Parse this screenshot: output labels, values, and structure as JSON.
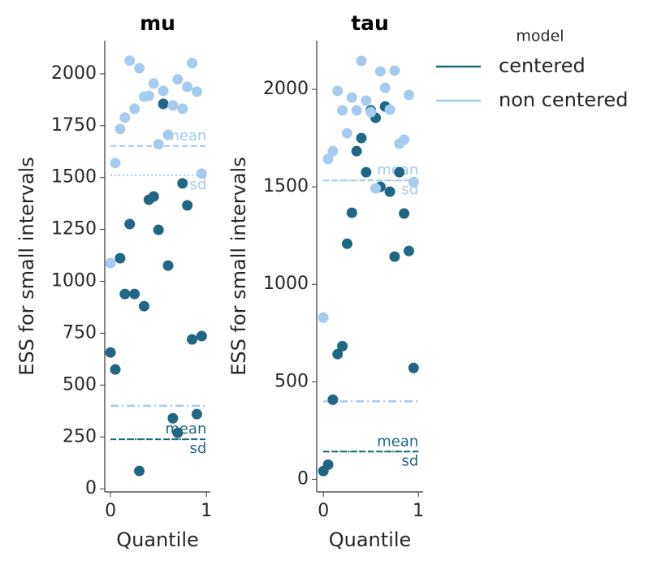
{
  "chart_data": [
    {
      "type": "scatter",
      "title": "mu",
      "xlabel": "Quantile",
      "ylabel": "ESS for small intervals",
      "x": [
        0,
        0.05,
        0.1,
        0.15,
        0.2,
        0.25,
        0.3,
        0.35,
        0.4,
        0.45,
        0.5,
        0.55,
        0.6,
        0.65,
        0.7,
        0.75,
        0.8,
        0.85,
        0.9,
        0.95
      ],
      "xlim": [
        -0.06,
        1.04
      ],
      "xticks": [
        0,
        1
      ],
      "ylim": [
        -15,
        2160
      ],
      "yticks": [
        0,
        250,
        500,
        750,
        1000,
        1250,
        1500,
        1750,
        2000
      ],
      "legend_title": "model",
      "series": [
        {
          "name": "centered",
          "color": "#1f6784",
          "values": [
            657,
            575,
            1111,
            939,
            1276,
            939,
            86,
            880,
            1393,
            1409,
            1248,
            1855,
            1076,
            340,
            270,
            1472,
            1366,
            720,
            360,
            736
          ],
          "mean_line": {
            "label": "mean",
            "value": 239
          },
          "sd_line": {
            "label": "sd",
            "value": 239
          }
        },
        {
          "name": "non centered",
          "color": "#a6cbf0",
          "values": [
            1088,
            1570,
            1734,
            1789,
            2063,
            1832,
            2027,
            1890,
            1894,
            1953,
            1660,
            1918,
            1706,
            1847,
            1973,
            1832,
            1937,
            2051,
            1914,
            1519
          ],
          "mean_line": {
            "label": "mean",
            "value": 1652
          },
          "sd_line": {
            "label": "sd",
            "value": 1511
          }
        }
      ],
      "min_ess_line": {
        "value": 400,
        "color": "#a6cbf0"
      }
    },
    {
      "type": "scatter",
      "title": "tau",
      "xlabel": "Quantile",
      "ylabel": "ESS for small intervals",
      "x": [
        0,
        0.05,
        0.1,
        0.15,
        0.2,
        0.25,
        0.3,
        0.35,
        0.4,
        0.45,
        0.5,
        0.55,
        0.6,
        0.65,
        0.7,
        0.75,
        0.8,
        0.85,
        0.9,
        0.95
      ],
      "xlim": [
        -0.07,
        1.05
      ],
      "xticks": [
        0,
        1
      ],
      "ylim": [
        -65,
        2250
      ],
      "yticks": [
        0,
        500,
        1000,
        1500,
        2000
      ],
      "series": [
        {
          "name": "centered",
          "color": "#1f6784",
          "values": [
            42,
            75,
            408,
            642,
            683,
            1208,
            1367,
            1683,
            1750,
            1575,
            1892,
            1854,
            1500,
            1912,
            1475,
            1142,
            1575,
            1363,
            1171,
            571
          ],
          "mean_line": {
            "label": "mean",
            "value": 142
          },
          "sd_line": {
            "label": "sd",
            "value": 142
          }
        },
        {
          "name": "non centered",
          "color": "#a6cbf0",
          "values": [
            829,
            1642,
            1683,
            1992,
            1892,
            1775,
            1958,
            1892,
            2146,
            1942,
            1883,
            1492,
            2092,
            2008,
            1896,
            2096,
            1721,
            1742,
            1971,
            1525
          ],
          "mean_line": {
            "label": "mean",
            "value": 1533
          },
          "sd_line": {
            "label": "sd",
            "value": 1533
          }
        }
      ],
      "min_ess_line": {
        "value": 400,
        "color": "#a6cbf0"
      }
    }
  ]
}
